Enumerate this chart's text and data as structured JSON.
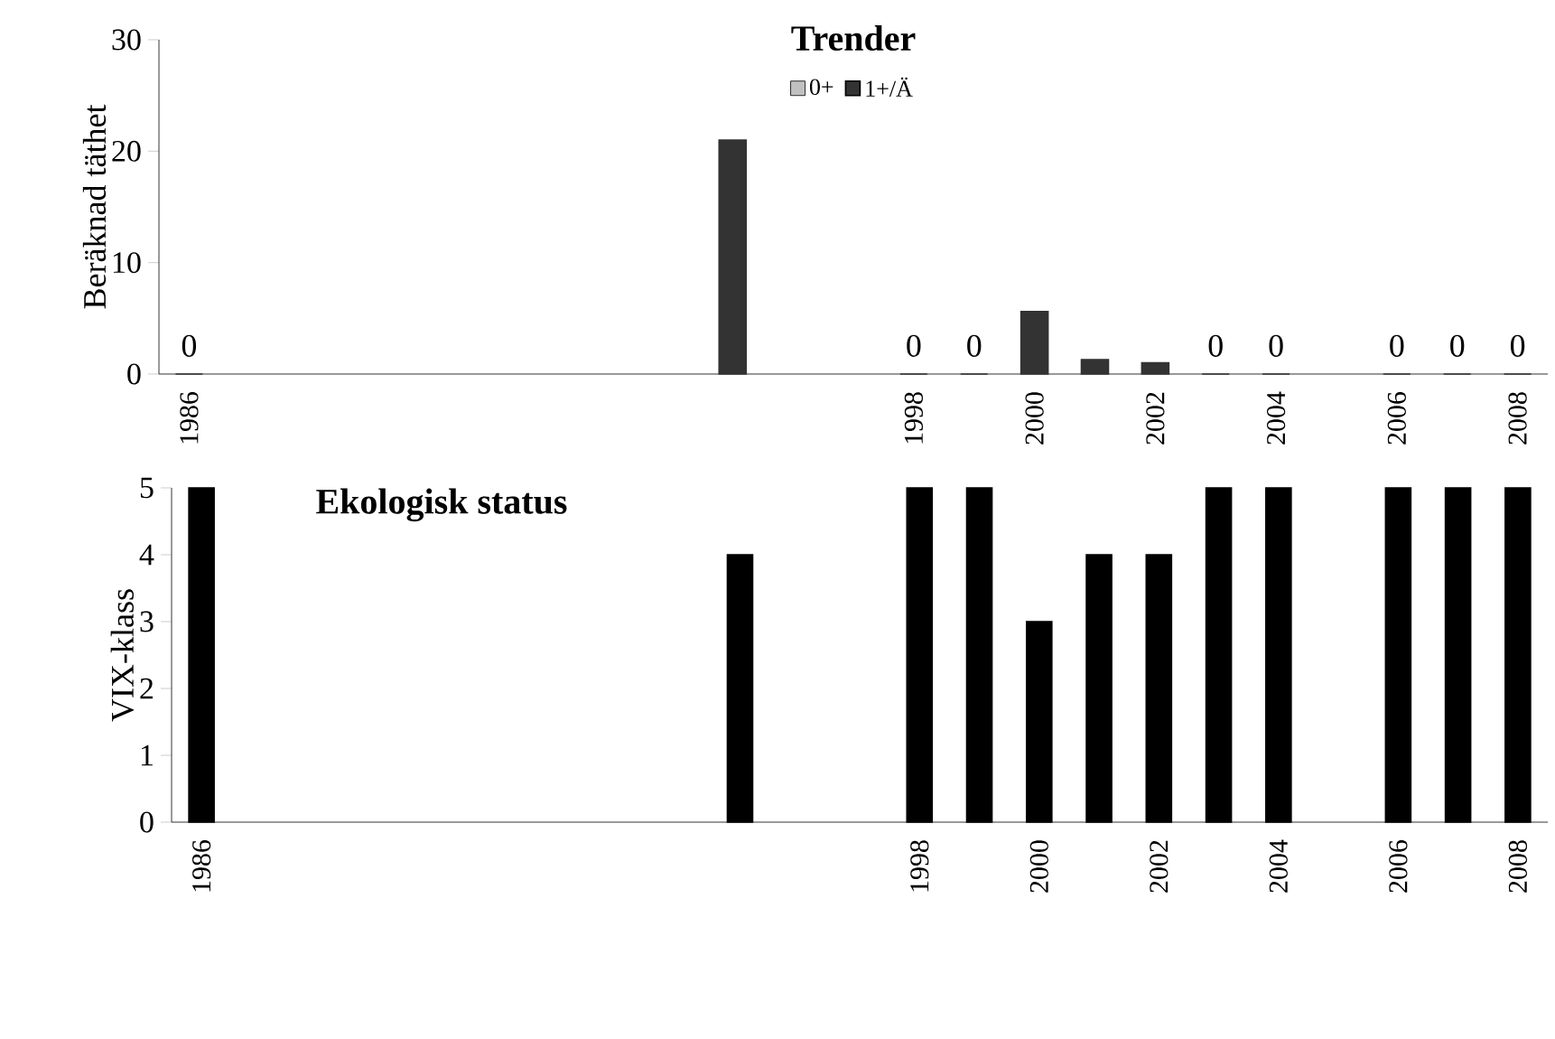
{
  "chart_data": [
    {
      "type": "bar",
      "title": "Trender",
      "ylabel": "Beräknad täthet",
      "categories": [
        "1986",
        null,
        null,
        null,
        null,
        null,
        null,
        null,
        null,
        null,
        null,
        null,
        "1998",
        null,
        "2000",
        null,
        "2002",
        null,
        "2004",
        null,
        "2006",
        null,
        "2008"
      ],
      "series": [
        {
          "name": "0+",
          "color": "#c0c0c0",
          "values": [
            null,
            null,
            null,
            null,
            null,
            null,
            null,
            null,
            null,
            null,
            null,
            null,
            null,
            null,
            null,
            null,
            null,
            null,
            null,
            null,
            null,
            null,
            null
          ]
        },
        {
          "name": "1+/Ä",
          "color": "#333333",
          "values": [
            0,
            null,
            null,
            null,
            null,
            null,
            null,
            null,
            null,
            21,
            null,
            null,
            0,
            0,
            5.6,
            1.3,
            1.0,
            0,
            0,
            null,
            0,
            0,
            0
          ],
          "value_labels": [
            "0",
            null,
            null,
            null,
            null,
            null,
            null,
            null,
            null,
            null,
            null,
            null,
            "0",
            "0",
            null,
            null,
            null,
            "0",
            "0",
            null,
            "0",
            "0",
            "0"
          ]
        }
      ],
      "ylim": [
        0,
        30
      ],
      "yticks": [
        0,
        10,
        20,
        30
      ],
      "legend": "top"
    },
    {
      "type": "bar",
      "title": "Ekologisk status",
      "ylabel": "VIX-klass",
      "categories": [
        "1986",
        null,
        null,
        null,
        null,
        null,
        null,
        null,
        null,
        null,
        null,
        null,
        "1998",
        null,
        "2000",
        null,
        "2002",
        null,
        "2004",
        null,
        "2006",
        null,
        "2008"
      ],
      "series": [
        {
          "color": "#000000",
          "values": [
            5,
            null,
            null,
            null,
            null,
            null,
            null,
            null,
            null,
            4,
            null,
            null,
            5,
            5,
            3,
            4,
            4,
            5,
            5,
            null,
            5,
            5,
            5
          ]
        }
      ],
      "ylim": [
        0,
        5
      ],
      "yticks": [
        0,
        1,
        2,
        3,
        4,
        5
      ]
    }
  ]
}
